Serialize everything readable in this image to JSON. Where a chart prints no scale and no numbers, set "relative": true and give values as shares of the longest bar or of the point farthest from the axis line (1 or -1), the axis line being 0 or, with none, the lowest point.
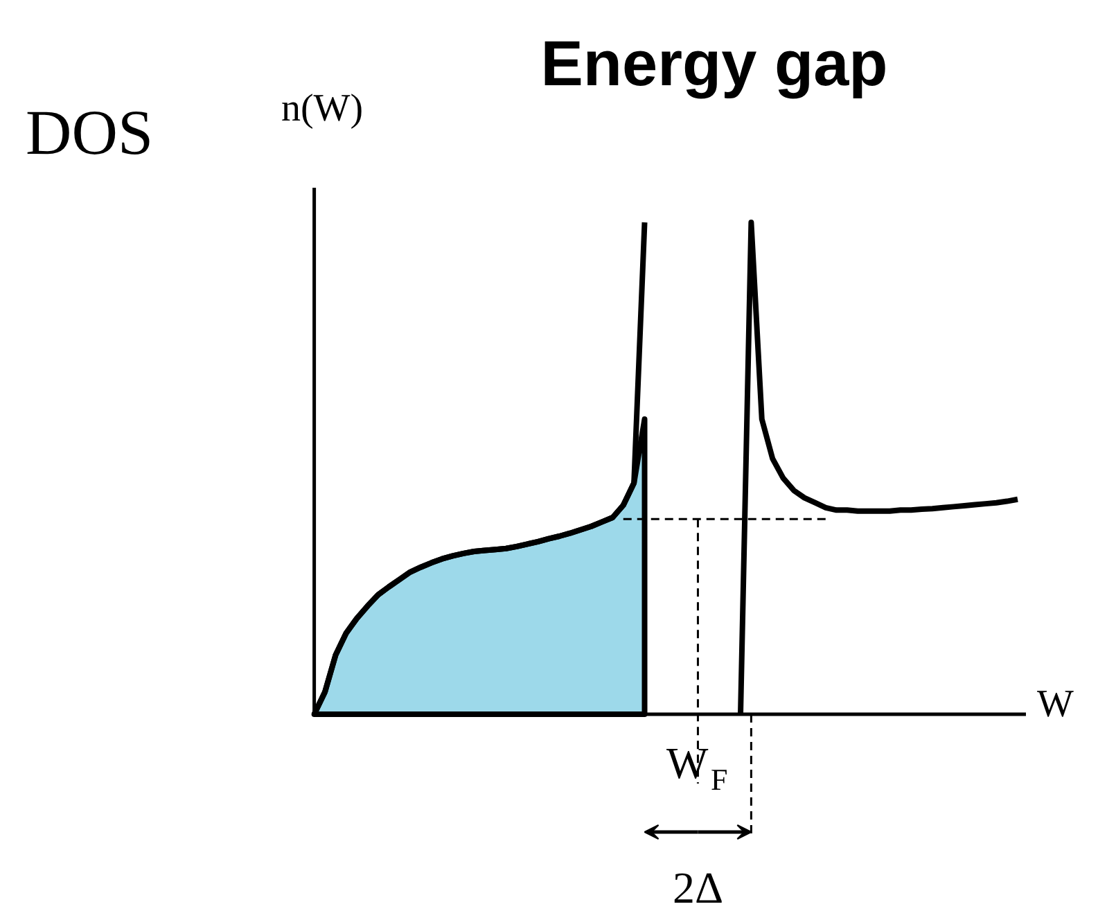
{
  "chart_data": {
    "type": "line",
    "relative": true,
    "title": "Energy gap",
    "ylabel": "n(W)",
    "xlabel": "W",
    "annotations": [
      "DOS",
      "W$_{F}$",
      "2Δ"
    ],
    "categories": [
      null,
      null,
      null,
      null,
      null,
      null,
      null,
      null,
      null,
      null,
      null,
      null,
      null,
      null,
      null,
      null,
      null,
      null,
      null,
      null,
      null,
      null,
      null,
      null,
      null,
      null,
      null,
      null,
      null,
      null,
      null,
      null,
      null,
      null,
      null,
      null,
      null,
      null,
      null,
      null,
      null,
      null,
      null,
      null,
      null,
      null,
      null,
      null,
      null,
      null,
      null,
      null,
      null,
      null,
      null,
      null,
      null,
      null,
      null,
      null,
      null,
      null,
      null,
      null,
      null,
      null,
      null
    ],
    "series": [
      {
        "type": "area",
        "color": "#9dd9ea",
        "values": [
          0,
          0.045,
          0.12,
          0.165,
          0.195,
          0.22,
          0.243,
          0.259,
          0.274,
          0.289,
          0.299,
          0.308,
          0.316,
          0.322,
          0.327,
          0.331,
          0.333,
          0.335,
          0.337,
          0.341,
          0.346,
          0.351,
          0.357,
          0.362,
          0.368,
          0.375,
          0.382,
          0.391,
          0.4,
          0.425,
          0.47,
          0.6,
          null,
          null,
          null,
          null,
          null,
          null,
          null,
          null,
          null,
          null,
          null,
          null,
          null,
          null,
          null,
          null,
          null,
          null,
          null,
          null,
          null,
          null,
          null,
          null,
          null,
          null,
          null,
          null,
          null,
          null,
          null,
          null,
          null,
          null,
          null
        ]
      },
      {
        "color": "#000000",
        "values": [
          0,
          0.045,
          0.12,
          0.165,
          0.195,
          0.22,
          0.243,
          0.259,
          0.274,
          0.289,
          0.299,
          0.308,
          0.316,
          0.322,
          0.327,
          0.331,
          0.333,
          0.335,
          0.337,
          0.341,
          0.346,
          0.351,
          0.357,
          0.362,
          0.368,
          0.375,
          0.382,
          0.391,
          0.4,
          0.425,
          0.47,
          1.0,
          null,
          null,
          null,
          null,
          null,
          null,
          null,
          null,
          null,
          null,
          null,
          null,
          null,
          null,
          null,
          null,
          null,
          null,
          null,
          null,
          null,
          null,
          null,
          null,
          null,
          null,
          null,
          null,
          null,
          null,
          null,
          null,
          null,
          null,
          null
        ]
      },
      {
        "color": "#000000",
        "values": [
          null,
          null,
          null,
          null,
          null,
          null,
          null,
          null,
          null,
          null,
          null,
          null,
          null,
          null,
          null,
          null,
          null,
          null,
          null,
          null,
          null,
          null,
          null,
          null,
          null,
          null,
          null,
          null,
          null,
          null,
          null,
          null,
          null,
          null,
          null,
          null,
          null,
          null,
          null,
          null,
          0,
          1.0,
          0.6,
          0.52,
          0.48,
          0.455,
          0.44,
          0.43,
          0.42,
          0.415,
          0.415,
          0.413,
          0.413,
          0.413,
          0.413,
          0.415,
          0.415,
          0.417,
          0.418,
          0.42,
          0.422,
          0.424,
          0.426,
          0.428,
          0.43,
          0.433,
          0.437
        ]
      },
      {
        "color": "#000000",
        "line_style": "dashed",
        "values": [
          null,
          null,
          null,
          null,
          null,
          null,
          null,
          null,
          null,
          null,
          null,
          null,
          null,
          null,
          null,
          null,
          null,
          null,
          null,
          null,
          null,
          null,
          null,
          null,
          null,
          null,
          null,
          null,
          null,
          0.397,
          0.397,
          0.397,
          0.397,
          0.397,
          0.397,
          0.397,
          0.397,
          0.397,
          0.397,
          0.397,
          0.397,
          0.397,
          0.397,
          0.397,
          0.397,
          0.397,
          0.397,
          0.397,
          0.397,
          null,
          null,
          null,
          null,
          null,
          null,
          null,
          null,
          null,
          null,
          null,
          null,
          null,
          null,
          null,
          null,
          null,
          null
        ]
      }
    ]
  }
}
